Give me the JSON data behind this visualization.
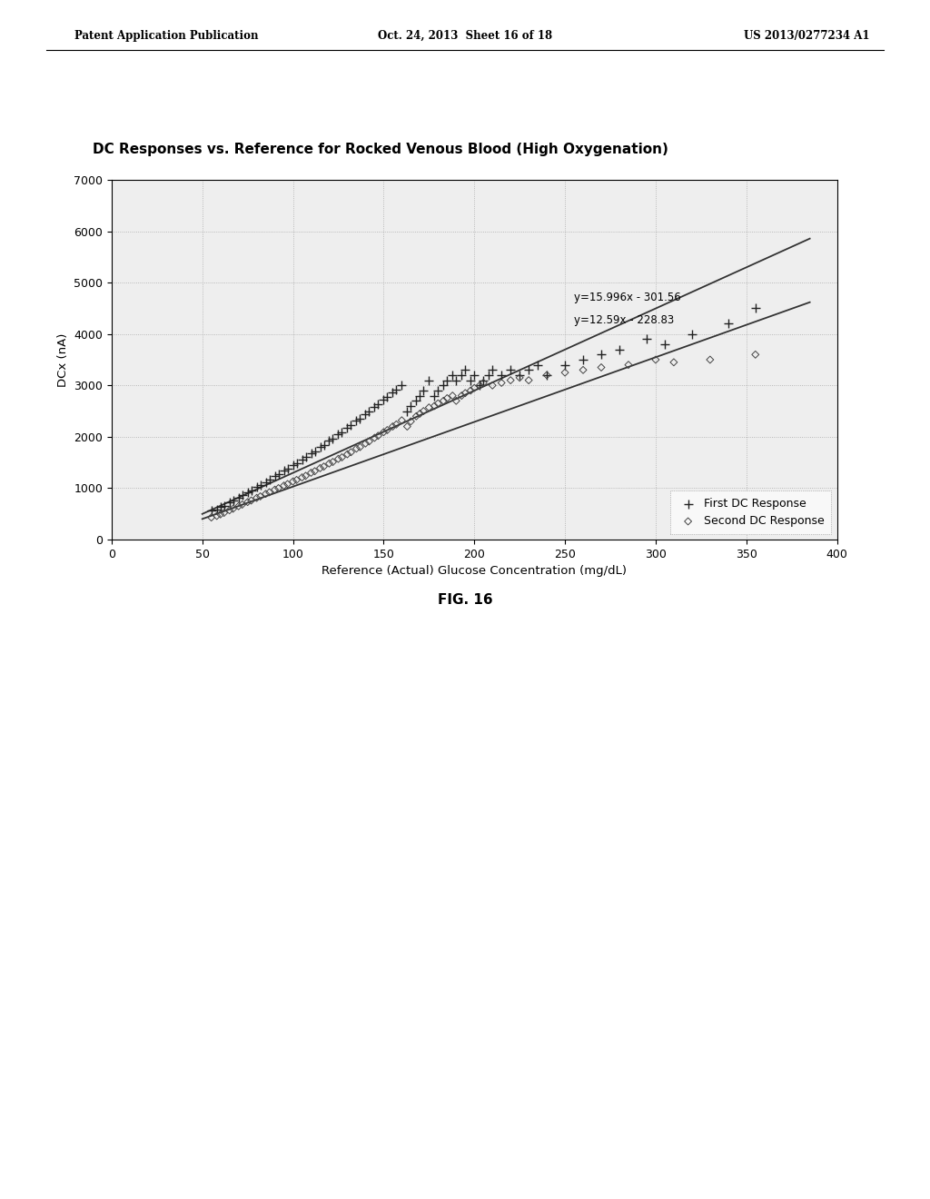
{
  "title": "DC Responses vs. Reference for Rocked Venous Blood (High Oxygenation)",
  "xlabel": "Reference (Actual) Glucose Concentration (mg/dL)",
  "ylabel": "DCx (nA)",
  "xlim": [
    0,
    400
  ],
  "ylim": [
    0,
    7000
  ],
  "xticks": [
    0,
    50,
    100,
    150,
    200,
    250,
    300,
    350,
    400
  ],
  "yticks": [
    0,
    1000,
    2000,
    3000,
    4000,
    5000,
    6000,
    7000
  ],
  "line1_slope": 15.996,
  "line1_intercept": -301.56,
  "line1_label": "y=15.996x - 301.56",
  "line2_slope": 12.59,
  "line2_intercept": -228.83,
  "line2_label": "y=12.59x - 228.83",
  "legend_label1": "First DC Response",
  "legend_label2": "Second DC Response",
  "header_left": "Patent Application Publication",
  "header_center": "Oct. 24, 2013  Sheet 16 of 18",
  "header_right": "US 2013/0277234 A1",
  "fig_label": "FIG. 16",
  "bg_color": "#ffffff",
  "plot_bg_color": "#eeeeee",
  "scatter1_x": [
    55,
    58,
    60,
    62,
    65,
    67,
    70,
    72,
    75,
    77,
    80,
    82,
    85,
    87,
    90,
    92,
    95,
    97,
    100,
    102,
    105,
    107,
    110,
    112,
    115,
    117,
    120,
    122,
    125,
    127,
    130,
    132,
    135,
    137,
    140,
    142,
    145,
    147,
    150,
    152,
    155,
    157,
    160,
    163,
    165,
    168,
    170,
    172,
    175,
    178,
    180,
    183,
    185,
    188,
    190,
    193,
    195,
    198,
    200,
    203,
    205,
    208,
    210,
    215,
    220,
    225,
    230,
    235,
    240,
    250,
    260,
    270,
    280,
    295,
    305,
    320,
    340,
    355
  ],
  "scatter1_y": [
    560,
    590,
    630,
    660,
    720,
    760,
    820,
    860,
    920,
    960,
    1020,
    1060,
    1120,
    1160,
    1230,
    1270,
    1340,
    1380,
    1450,
    1490,
    1560,
    1600,
    1680,
    1720,
    1800,
    1840,
    1920,
    1960,
    2050,
    2090,
    2170,
    2220,
    2310,
    2350,
    2440,
    2490,
    2580,
    2630,
    2720,
    2770,
    2860,
    2910,
    3000,
    2500,
    2600,
    2700,
    2800,
    2900,
    3100,
    2800,
    2900,
    3000,
    3100,
    3200,
    3100,
    3200,
    3300,
    3100,
    3200,
    3000,
    3100,
    3200,
    3300,
    3200,
    3300,
    3200,
    3300,
    3400,
    3200,
    3400,
    3500,
    3600,
    3700,
    3900,
    3800,
    4000,
    4200,
    4500
  ],
  "scatter2_x": [
    55,
    58,
    60,
    62,
    65,
    67,
    70,
    72,
    75,
    77,
    80,
    82,
    85,
    87,
    90,
    92,
    95,
    97,
    100,
    102,
    105,
    107,
    110,
    112,
    115,
    117,
    120,
    122,
    125,
    127,
    130,
    132,
    135,
    137,
    140,
    142,
    145,
    147,
    150,
    152,
    155,
    157,
    160,
    163,
    165,
    168,
    170,
    172,
    175,
    178,
    180,
    183,
    185,
    188,
    190,
    193,
    195,
    198,
    200,
    203,
    205,
    210,
    215,
    220,
    225,
    230,
    240,
    250,
    260,
    270,
    285,
    300,
    310,
    330,
    355
  ],
  "scatter2_y": [
    430,
    460,
    490,
    520,
    570,
    600,
    650,
    680,
    730,
    760,
    810,
    840,
    890,
    920,
    970,
    1000,
    1050,
    1080,
    1130,
    1160,
    1210,
    1240,
    1300,
    1330,
    1390,
    1420,
    1480,
    1510,
    1570,
    1600,
    1660,
    1700,
    1770,
    1800,
    1870,
    1910,
    1980,
    2020,
    2090,
    2130,
    2200,
    2240,
    2320,
    2200,
    2300,
    2400,
    2450,
    2500,
    2570,
    2600,
    2650,
    2700,
    2750,
    2800,
    2700,
    2800,
    2850,
    2900,
    2950,
    3000,
    3050,
    3000,
    3050,
    3100,
    3150,
    3100,
    3200,
    3250,
    3300,
    3350,
    3400,
    3500,
    3450,
    3500,
    3600
  ]
}
